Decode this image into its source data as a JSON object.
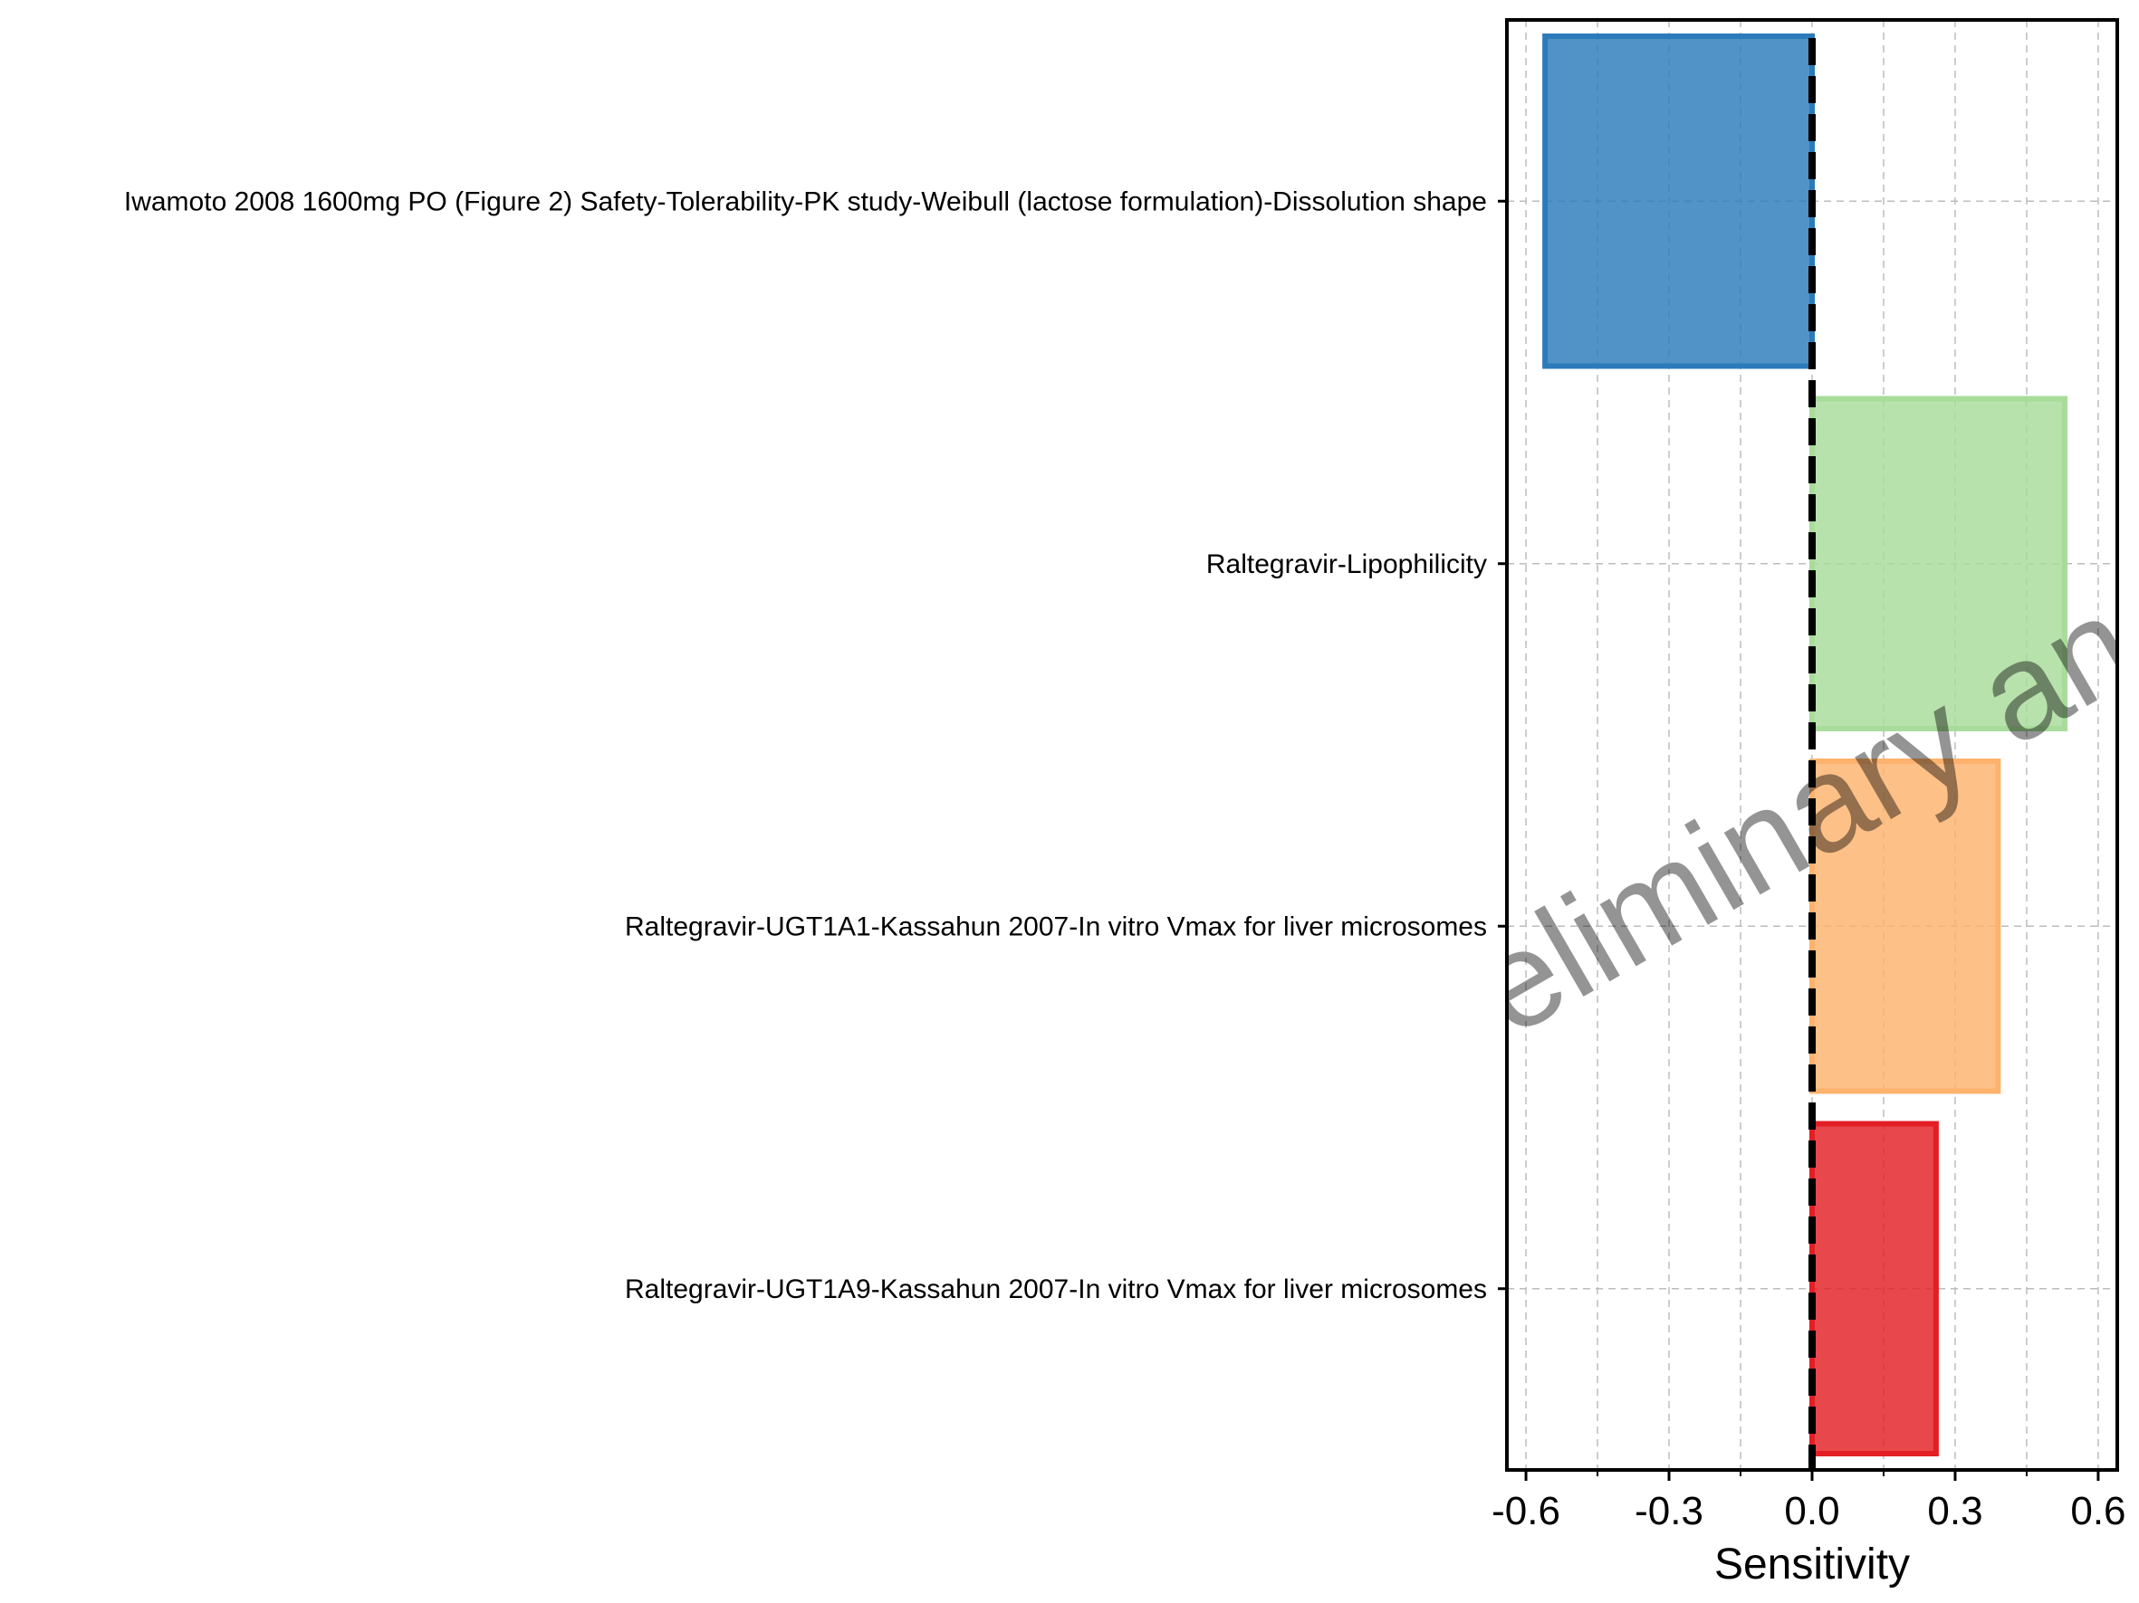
{
  "chart_data": {
    "type": "bar",
    "orientation": "horizontal",
    "title": "",
    "xlabel": "Sensitivity",
    "ylabel": "",
    "xlim": [
      -0.64,
      0.64
    ],
    "xticks": [
      -0.6,
      -0.3,
      0.0,
      0.3,
      0.6
    ],
    "xtick_labels": [
      "-0.6",
      "-0.3",
      "0.0",
      "0.3",
      "0.6"
    ],
    "grid": true,
    "reference_line": 0.0,
    "watermark": "Preliminary analysis",
    "bars": [
      {
        "label": "Iwamoto 2008 1600mg PO (Figure 2) Safety-Tolerability-PK study-Weibull (lactose formulation)-Dissolution shape",
        "value": -0.56,
        "color": "#2b7bba"
      },
      {
        "label": "Raltegravir-Lipophilicity",
        "value": 0.53,
        "color": "#a8dc9a"
      },
      {
        "label": "Raltegravir-UGT1A1-Kassahun 2007-In vitro Vmax for liver microsomes",
        "value": 0.39,
        "color": "#fdb26d"
      },
      {
        "label": "Raltegravir-UGT1A9-Kassahun 2007-In vitro Vmax for liver microsomes",
        "value": 0.26,
        "color": "#e31e24"
      }
    ]
  }
}
